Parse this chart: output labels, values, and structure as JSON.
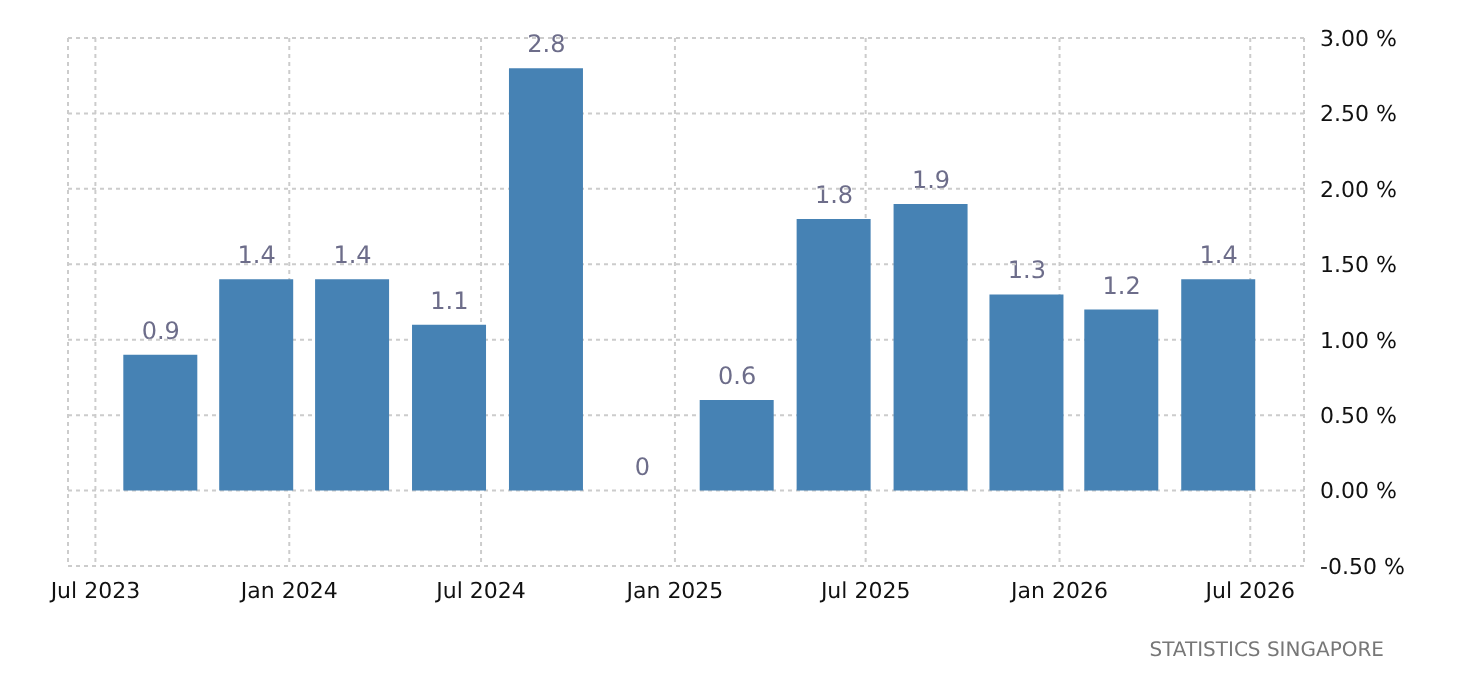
{
  "chart_data": {
    "type": "bar",
    "x": [
      "2023-09",
      "2023-12",
      "2024-03",
      "2024-06",
      "2024-09",
      "2024-12",
      "2025-03",
      "2025-06",
      "2025-09",
      "2025-12",
      "2026-03",
      "2026-06"
    ],
    "values": [
      0.9,
      1.4,
      1.4,
      1.1,
      2.8,
      0,
      0.6,
      1.8,
      1.9,
      1.3,
      1.2,
      1.4
    ],
    "color": "#4682b4",
    "data_labels": true,
    "xlim": [
      "2023-06-05",
      "2026-08-21"
    ],
    "xticks": [
      {
        "value": "2023-07",
        "label": "Jul 2023"
      },
      {
        "value": "2024-01",
        "label": "Jan 2024"
      },
      {
        "value": "2024-07",
        "label": "Jul 2024"
      },
      {
        "value": "2025-01",
        "label": "Jan 2025"
      },
      {
        "value": "2025-07",
        "label": "Jul 2025"
      },
      {
        "value": "2026-01",
        "label": "Jan 2026"
      },
      {
        "value": "2026-07",
        "label": "Jul 2026"
      }
    ],
    "ylim": [
      -0.5,
      3
    ],
    "yticks": [
      {
        "value": -0.5,
        "label": "-0.50 %"
      },
      {
        "value": 0,
        "label": "0.00 %"
      },
      {
        "value": 0.5,
        "label": "0.50 %"
      },
      {
        "value": 1,
        "label": "1.00 %"
      },
      {
        "value": 1.5,
        "label": "1.50 %"
      },
      {
        "value": 2,
        "label": "2.00 %"
      },
      {
        "value": 2.5,
        "label": "2.50 %"
      },
      {
        "value": 3,
        "label": "3.00 %"
      }
    ],
    "grid": true,
    "annotations": [
      "STATISTICS SINGAPORE"
    ]
  }
}
